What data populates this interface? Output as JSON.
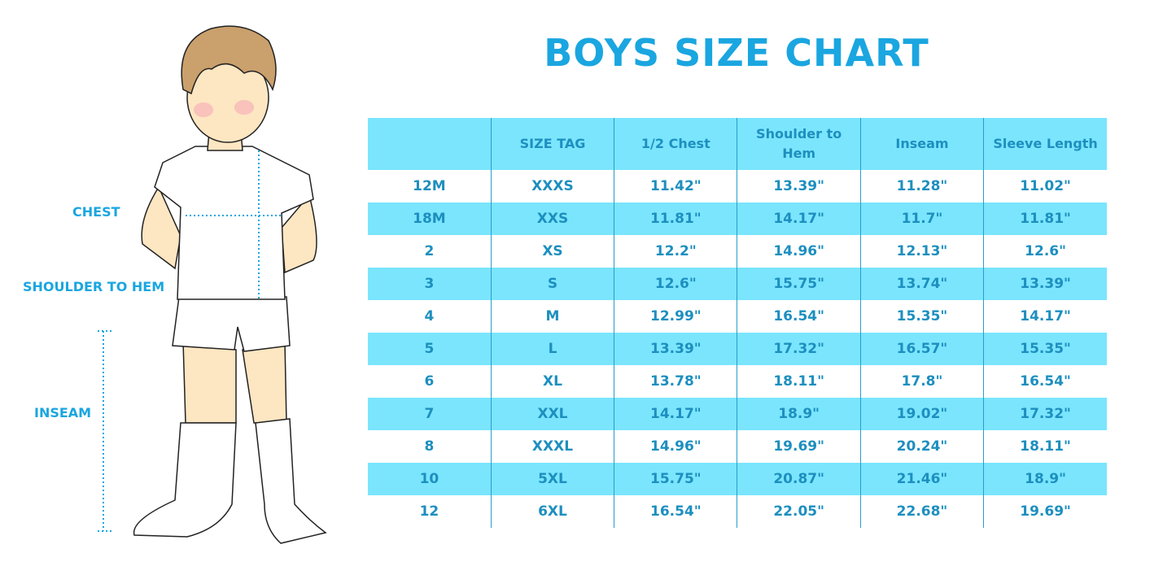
{
  "title": "BOYS SIZE CHART",
  "labels": {
    "chest": "CHEST",
    "shoulder": "SHOULDER TO HEM",
    "inseam": "INSEAM"
  },
  "colors": {
    "title": "#1aa6e0",
    "header_bg": "#7ae5fd",
    "text": "#1d8fbf"
  },
  "table": {
    "headers": [
      "",
      "SIZE TAG",
      "1/2 Chest",
      "Shoulder to Hem",
      "Inseam",
      "Sleeve Length"
    ],
    "rows": [
      [
        "12M",
        "XXXS",
        "11.42\"",
        "13.39\"",
        "11.28\"",
        "11.02\""
      ],
      [
        "18M",
        "XXS",
        "11.81\"",
        "14.17\"",
        "11.7\"",
        "11.81\""
      ],
      [
        "2",
        "XS",
        "12.2\"",
        "14.96\"",
        "12.13\"",
        "12.6\""
      ],
      [
        "3",
        "S",
        "12.6\"",
        "15.75\"",
        "13.74\"",
        "13.39\""
      ],
      [
        "4",
        "M",
        "12.99\"",
        "16.54\"",
        "15.35\"",
        "14.17\""
      ],
      [
        "5",
        "L",
        "13.39\"",
        "17.32\"",
        "16.57\"",
        "15.35\""
      ],
      [
        "6",
        "XL",
        "13.78\"",
        "18.11\"",
        "17.8\"",
        "16.54\""
      ],
      [
        "7",
        "XXL",
        "14.17\"",
        "18.9\"",
        "19.02\"",
        "17.32\""
      ],
      [
        "8",
        "XXXL",
        "14.96\"",
        "19.69\"",
        "20.24\"",
        "18.11\""
      ],
      [
        "10",
        "5XL",
        "15.75\"",
        "20.87\"",
        "21.46\"",
        "18.9\""
      ],
      [
        "12",
        "6XL",
        "16.54\"",
        "22.05\"",
        "22.68\"",
        "19.69\""
      ]
    ]
  }
}
